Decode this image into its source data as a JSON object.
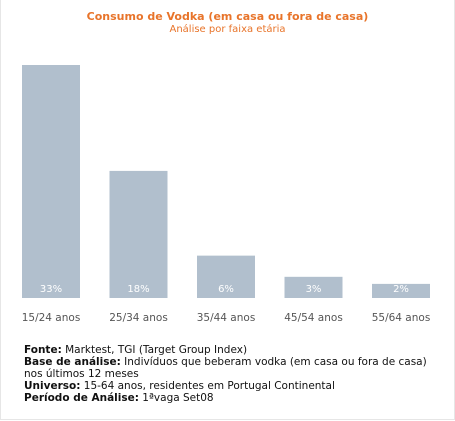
{
  "chart_data": {
    "type": "bar",
    "title": "Consumo de Vodka (em casa ou fora de casa)",
    "subtitle": "Análise por faixa etária",
    "categories": [
      "15/24 anos",
      "25/34 anos",
      "35/44 anos",
      "45/54 anos",
      "55/64 anos"
    ],
    "values": [
      33,
      18,
      6,
      3,
      2
    ],
    "value_labels": [
      "33%",
      "18%",
      "6%",
      "3%",
      "2%"
    ],
    "ylim": [
      0,
      35
    ],
    "grid": false,
    "legend": "none",
    "bar_color": "#b1bfcd",
    "label_color": "#ffffff"
  },
  "notes": {
    "fonte_label": "Fonte:",
    "fonte_value": " Marktest, TGI (Target Group Index)",
    "base_label": "Base de análise:",
    "base_value": " Indivíduos que beberam vodka (em casa ou fora de casa) nos últimos 12 meses",
    "universo_label": "Universo:",
    "universo_value": " 15-64 anos, residentes em Portugal Continental",
    "periodo_label": "Período de Análise:",
    "periodo_value": " 1ªvaga Set08"
  },
  "colors": {
    "title": "#e8742a",
    "bars": "#b1bfcd"
  }
}
